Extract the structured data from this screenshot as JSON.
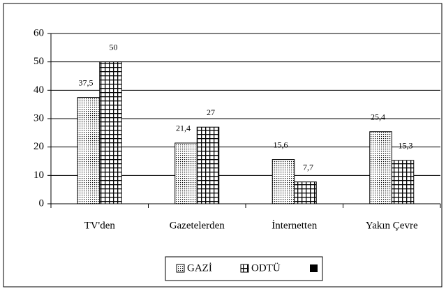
{
  "chart_data": {
    "type": "bar",
    "categories": [
      "TV'den",
      "Gazetelerden",
      "İnternetten",
      "Yakın Çevre"
    ],
    "series": [
      {
        "name": "GAZİ",
        "color": "#000000",
        "values": [
          37.5,
          21.4,
          15.6,
          25.4
        ],
        "value_labels": [
          "37,5",
          "21,4",
          "15,6",
          "25,4"
        ]
      },
      {
        "name": "ODTÜ",
        "color": "#000000",
        "values": [
          50,
          27,
          7.7,
          15.3
        ],
        "value_labels": [
          "50",
          "27",
          "7,7",
          "15,3"
        ]
      }
    ],
    "ylim": [
      0,
      60
    ],
    "yticks": [
      0,
      10,
      20,
      30,
      40,
      50,
      60
    ],
    "grid": true,
    "legend": "bottom"
  }
}
